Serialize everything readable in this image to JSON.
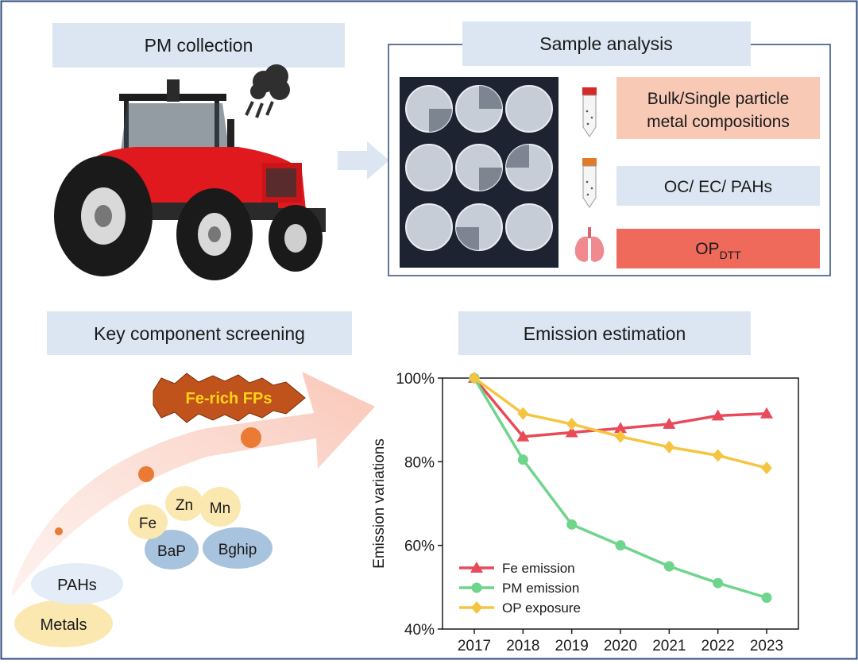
{
  "panels": {
    "pm_collection": "PM collection",
    "sample_analysis": "Sample analysis",
    "key_screening": "Key component screening",
    "emission_estimation": "Emission estimation"
  },
  "analysis_boxes": {
    "bulk_line1": "Bulk/Single particle",
    "bulk_line2": "metal compositions",
    "oc_ec": "OC/ EC/ PAHs",
    "op_main": "OP",
    "op_sub": "DTT"
  },
  "screening": {
    "highlight": "Fe-rich FPs",
    "metals": "Metals",
    "pahs": "PAHs",
    "fe": "Fe",
    "zn": "Zn",
    "mn": "Mn",
    "bap": "BaP",
    "bghip": "Bghip"
  },
  "colors": {
    "title_bg": "#dce6f2",
    "frame": "#2e4a7d",
    "bulk_bg": "#f8c9b5",
    "op_bg": "#f06a5c",
    "fe_series": "#e84a5a",
    "pm_series": "#6fd48c",
    "op_series": "#f5c542"
  },
  "chart_data": {
    "type": "line",
    "ylabel": "Emission variations",
    "xlabel": "",
    "x": [
      "2017",
      "2018",
      "2019",
      "2020",
      "2021",
      "2022",
      "2023"
    ],
    "y_ticks": [
      "40%",
      "60%",
      "80%",
      "100%"
    ],
    "ylim": [
      40,
      100
    ],
    "series": [
      {
        "name": "Fe emission",
        "marker": "triangle",
        "values": [
          100,
          86,
          87,
          88,
          89,
          91,
          91.5
        ]
      },
      {
        "name": "PM emission",
        "marker": "circle",
        "values": [
          100,
          80.5,
          65,
          60,
          55,
          51,
          47.5
        ]
      },
      {
        "name": "OP exposure",
        "marker": "diamond",
        "values": [
          100,
          91.5,
          89,
          86,
          83.5,
          81.5,
          78.5
        ]
      }
    ],
    "legend": "bottom-left"
  }
}
